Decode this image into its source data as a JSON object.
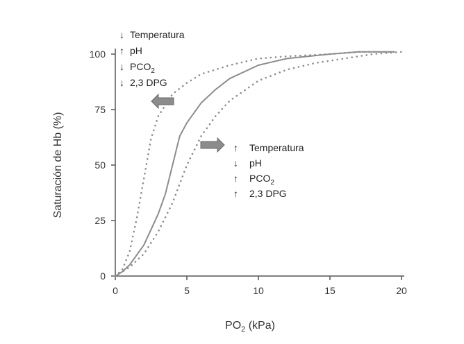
{
  "chart_data": {
    "type": "line",
    "xlabel": {
      "main": "PO",
      "sub": "2",
      "rest": " (kPa)"
    },
    "ylabel": "Saturación de Hb (%)",
    "xlim": [
      0,
      20
    ],
    "ylim": [
      0,
      100
    ],
    "xticks": [
      "0",
      "5",
      "10",
      "15",
      "20"
    ],
    "yticks": [
      "0",
      "25",
      "50",
      "75",
      "100"
    ],
    "grid": false,
    "series": [
      {
        "style": "solid",
        "x": [
          0,
          0.5,
          1,
          2,
          3,
          3.5,
          4,
          4.5,
          5,
          6,
          7,
          8,
          10,
          12,
          15,
          17,
          19.5
        ],
        "y": [
          0,
          2,
          5,
          14,
          28,
          37,
          50,
          63,
          69,
          78,
          84,
          89,
          95,
          98,
          100,
          101,
          101
        ]
      },
      {
        "style": "dotted",
        "x": [
          0,
          0.5,
          1,
          1.5,
          2,
          2.5,
          3,
          4,
          5,
          6,
          8,
          10,
          12,
          15,
          17,
          19.5
        ],
        "y": [
          0,
          3,
          11,
          26,
          44,
          62,
          72,
          82,
          87,
          91,
          95,
          98,
          99,
          100,
          101,
          101
        ]
      },
      {
        "style": "dotted",
        "x": [
          0,
          0.5,
          1,
          2,
          3,
          4,
          5,
          6,
          7,
          8,
          10,
          12,
          14,
          16,
          18,
          20
        ],
        "y": [
          0,
          2,
          4,
          10,
          20,
          33,
          50,
          63,
          72,
          79,
          88,
          93,
          96,
          98,
          100,
          101
        ]
      }
    ],
    "annotations": {
      "left_shift": [
        {
          "arrow": "↓",
          "text": "Temperatura",
          "sub": ""
        },
        {
          "arrow": "↑",
          "text": "pH",
          "sub": ""
        },
        {
          "arrow": "↓",
          "text": "PCO",
          "sub": "2"
        },
        {
          "arrow": "↓",
          "text": "2,3 DPG",
          "sub": ""
        }
      ],
      "right_shift": [
        {
          "arrow": "↑",
          "text": "Temperatura",
          "sub": ""
        },
        {
          "arrow": "↓",
          "text": "pH",
          "sub": ""
        },
        {
          "arrow": "↑",
          "text": "PCO",
          "sub": "2"
        },
        {
          "arrow": "↑",
          "text": "2,3 DPG",
          "sub": ""
        }
      ]
    },
    "colors": {
      "axis": "#555555",
      "solid_line": "#8c8c8c",
      "dotted_line": "#8c8c8c",
      "shift_arrow": "#8c8c8c"
    }
  }
}
